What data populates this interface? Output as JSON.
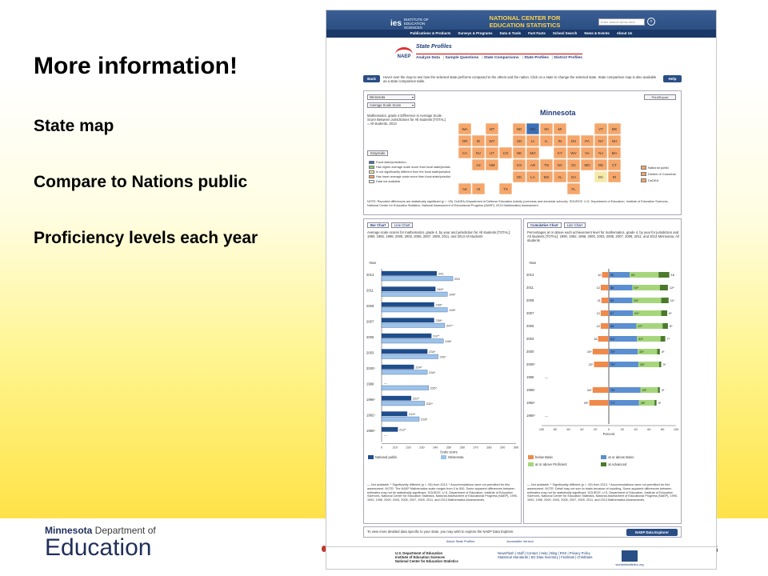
{
  "slide": {
    "title": "More information!",
    "bullets": [
      "State map",
      "Compare to Nations public",
      "Proficiency levels each year"
    ],
    "logo_line1_bold": "Minnesota",
    "logo_line1_rest": " Department of",
    "logo_line2": "Education",
    "page_number": "6"
  },
  "site": {
    "ies": "ies",
    "ies_sub": "INSTITUTE OF EDUCATION SCIENCES",
    "nces_title": "NATIONAL CENTER FOR EDUCATION STATISTICS",
    "search_placeholder": "Enter search terms here",
    "nav": [
      "Publications & Products",
      "Surveys & Programs",
      "Data & Tools",
      "Fast Facts",
      "School Search",
      "News & Events",
      "About Us"
    ]
  },
  "naep": {
    "logo": "NAEP",
    "section_title": "State Profiles",
    "tabs": [
      "Analyze Data",
      "Sample Questions",
      "State Comparisons",
      "State Profiles",
      "District Profiles"
    ],
    "back": "Back",
    "help": "Help",
    "instructions": "Hover over the map to see how the selected state performs compared to the others and the nation. Click on a state to change the selected state. State comparison map is also available as a state comparison table."
  },
  "map_panel": {
    "state_select": "Minnesota",
    "measure_select": "Average Scale Score",
    "print_export": "Print/Export",
    "description": "Mathematics, grade 4 Difference in Average Scale Score Between Jurisdictions for All students [TOTAL] = All students, 2013",
    "grayscale": "Grayscale",
    "selected_state": "Minnesota",
    "legend_left": [
      {
        "label": "Focal state/jurisdiction",
        "color": "#3b6fb6"
      },
      {
        "label": "Has higher average scale score than focal state/jurisdiction",
        "color": "#8fce6e"
      },
      {
        "label": "Is not significantly different from the focal state/jurisdiction",
        "color": "#f4e9a8"
      },
      {
        "label": "Has lower average scale score than focal state/jurisdiction",
        "color": "#f5a66a"
      },
      {
        "label": "Data not available",
        "color": "#ffffff"
      }
    ],
    "legend_right": [
      "National public",
      "District of Columbia",
      "DoDEA"
    ],
    "note": "NOTE: Reported differences are statistically significant (p < .05). DoDEA=Department of Defense Education Activity (overseas and domestic schools). SOURCE: U.S. Department of Education, Institute of Education Sciences, National Center for Education Statistics, National Assessment of Educational Progress (NAEP), 2013 Mathematics Assessment.",
    "state_labels": [
      "WA",
      "OR",
      "CA",
      "NV",
      "ID",
      "MT",
      "WY",
      "UT",
      "AZ",
      "CO",
      "NM",
      "ND",
      "SD",
      "NE",
      "KS",
      "OK",
      "TX",
      "MN",
      "IA",
      "MO",
      "AR",
      "LA",
      "WI",
      "IL",
      "MS",
      "MI",
      "IN",
      "KY",
      "TN",
      "AL",
      "OH",
      "GA",
      "FL",
      "SC",
      "NC",
      "VA",
      "WV",
      "PA",
      "NY",
      "VT",
      "ME",
      "NH",
      "MA",
      "RI",
      "CT",
      "NJ",
      "DE",
      "MD",
      "DC",
      "AK",
      "HI"
    ]
  },
  "left_chart": {
    "tabs": [
      "Bar Chart",
      "Line Chart"
    ],
    "description": "Average scale scores for mathematics, grade 4, by year and jurisdiction for All students [TOTAL]: 1990, 1992, 1996, 2000, 2003, 2005, 2007, 2009, 2011, and 2013 All students",
    "y_title": "Year",
    "x_title": "Scale score",
    "legend": [
      {
        "label": "National public",
        "color": "#1f4e8c"
      },
      {
        "label": "Minnesota",
        "color": "#9cc3ea"
      }
    ],
    "note": "— Not available. * Significantly different (p < .05) from 2013. ¹ Accommodations were not permitted for this assessment. NOTE: The NAEP Mathematics scale ranges from 0 to 500. Some apparent differences between estimates may not be statistically significant. SOURCE: U.S. Department of Education, Institute of Education Sciences, National Center for Education Statistics, National Assessment of Educational Progress (NAEP), 1990, 1992, 1996, 2000, 2003, 2005, 2007, 2009, 2011, and 2013 Mathematics Assessments."
  },
  "right_chart": {
    "tabs": [
      "Cumulative Chart",
      "Line Chart"
    ],
    "description": "Percentages at or above each achievement level for mathematics, grade 4, by year for jurisdiction and All students [TOTAL]: 1990, 1992, 1996, 2000, 2003, 2005, 2007, 2009, 2011, and 2013 Minnesota, All students",
    "y_title": "Year",
    "x_title": "Percent",
    "legend": [
      {
        "label": "below Basic",
        "color": "#f08a4b"
      },
      {
        "label": "at or above Basic",
        "color": "#5b8fd1"
      },
      {
        "label": "at or above Proficient",
        "color": "#a6d67c"
      },
      {
        "label": "at Advanced",
        "color": "#4c7a2c"
      }
    ],
    "note": "— Not available. * Significantly different (p < .05) from 2013. ¹ Accommodations were not permitted for this assessment. NOTE: Detail may not sum to totals because of rounding. Some apparent differences between estimates may not be statistically significant. SOURCE: U.S. Department of Education, Institute of Education Sciences, National Center for Education Statistics, National Assessment of Educational Progress (NAEP), 1990, 1992, 1996, 2000, 2003, 2005, 2007, 2009, 2011, and 2013 Mathematics Assessments."
  },
  "explorer": {
    "text": "To view more detailed data specific to your state, you may wish to explore the NAEP Data Explorer.",
    "button": "NAEP Data Explorer"
  },
  "about_links": [
    "About State Profiles",
    "Accessible Version"
  ],
  "footer": {
    "org": "U.S. Department of Education\nInstitute of Education Sciences\nNational Center for Education Statistics",
    "links": "NewsFlash | Staff | Contact | Help | Blog | RSS | Privacy Policy\nStatistical Standards | ED Data Inventory | FedStats | ChildStats",
    "site": "worldofstatistics.org"
  },
  "chart_data": [
    {
      "type": "bar",
      "orientation": "horizontal",
      "categories": [
        "2013",
        "2011",
        "2009",
        "2007",
        "2005",
        "2003",
        "2000¹",
        "1996",
        "1996¹",
        "1992¹",
        "1990¹"
      ],
      "series": [
        {
          "name": "National public",
          "values": [
            241,
            240,
            239,
            239,
            237,
            234,
            224,
            null,
            222,
            219,
            212
          ],
          "labels": [
            "241",
            "240*",
            "239*",
            "239*",
            "237*",
            "234*",
            "224*",
            "—",
            "222*",
            "219*",
            "212*"
          ]
        },
        {
          "name": "Minnesota",
          "values": [
            253,
            249,
            249,
            247,
            246,
            242,
            234,
            235,
            232,
            228,
            null
          ],
          "labels": [
            "253",
            "249*",
            "249*",
            "247*",
            "246*",
            "242*",
            "234*",
            "235*",
            "232*",
            "228*",
            "—"
          ]
        }
      ],
      "xlabel": "Scale score",
      "ylabel": "Year",
      "xlim": [
        200,
        300
      ],
      "x_ticks": [
        "0",
        "210",
        "220",
        "230",
        "240",
        "250",
        "260",
        "270",
        "280",
        "290",
        "300"
      ]
    },
    {
      "type": "bar",
      "orientation": "horizontal-diverging",
      "categories": [
        "2013",
        "2011",
        "2009",
        "2007",
        "2005",
        "2003",
        "2000",
        "2000¹",
        "1996",
        "1996¹",
        "1992¹",
        "1990¹"
      ],
      "series": [
        {
          "name": "below Basic",
          "values": [
            10,
            12,
            11,
            12,
            12,
            16,
            24,
            22,
            null,
            24,
            29,
            null
          ],
          "labels": [
            "10",
            "12",
            "11",
            "12",
            "12",
            "16",
            "24*",
            "22*",
            "—",
            "24*",
            "29*",
            "—"
          ]
        },
        {
          "name": "at or above Basic",
          "values": [
            90,
            88,
            89,
            87,
            88,
            84,
            76,
            78,
            null,
            76,
            71,
            null
          ],
          "labels": [
            "90",
            "88",
            "89",
            "87",
            "88",
            "84*",
            "76*",
            "78*",
            "—",
            "76*",
            "71*",
            "—"
          ]
        },
        {
          "name": "at or above Proficient",
          "values": [
            59,
            53,
            54,
            51,
            47,
            42,
            33,
            34,
            null,
            29,
            26,
            null
          ],
          "labels": [
            "59",
            "53*",
            "54*",
            "51*",
            "47*",
            "42*",
            "33*",
            "34*",
            "—",
            "29*",
            "26*",
            "—"
          ]
        },
        {
          "name": "at Advanced",
          "values": [
            16,
            12,
            11,
            9,
            8,
            7,
            4,
            3,
            null,
            3,
            3,
            null
          ],
          "labels": [
            "16",
            "12*",
            "11*",
            "9*",
            "8*",
            "7*",
            "4*",
            "3*",
            "—",
            "3*",
            "3*",
            "—"
          ]
        }
      ],
      "xlabel": "Percent",
      "ylabel": "Year",
      "xlim": [
        -100,
        100
      ],
      "x_ticks": [
        "100",
        "80",
        "60",
        "40",
        "20",
        "0",
        "20",
        "40",
        "60",
        "80",
        "100"
      ]
    }
  ]
}
